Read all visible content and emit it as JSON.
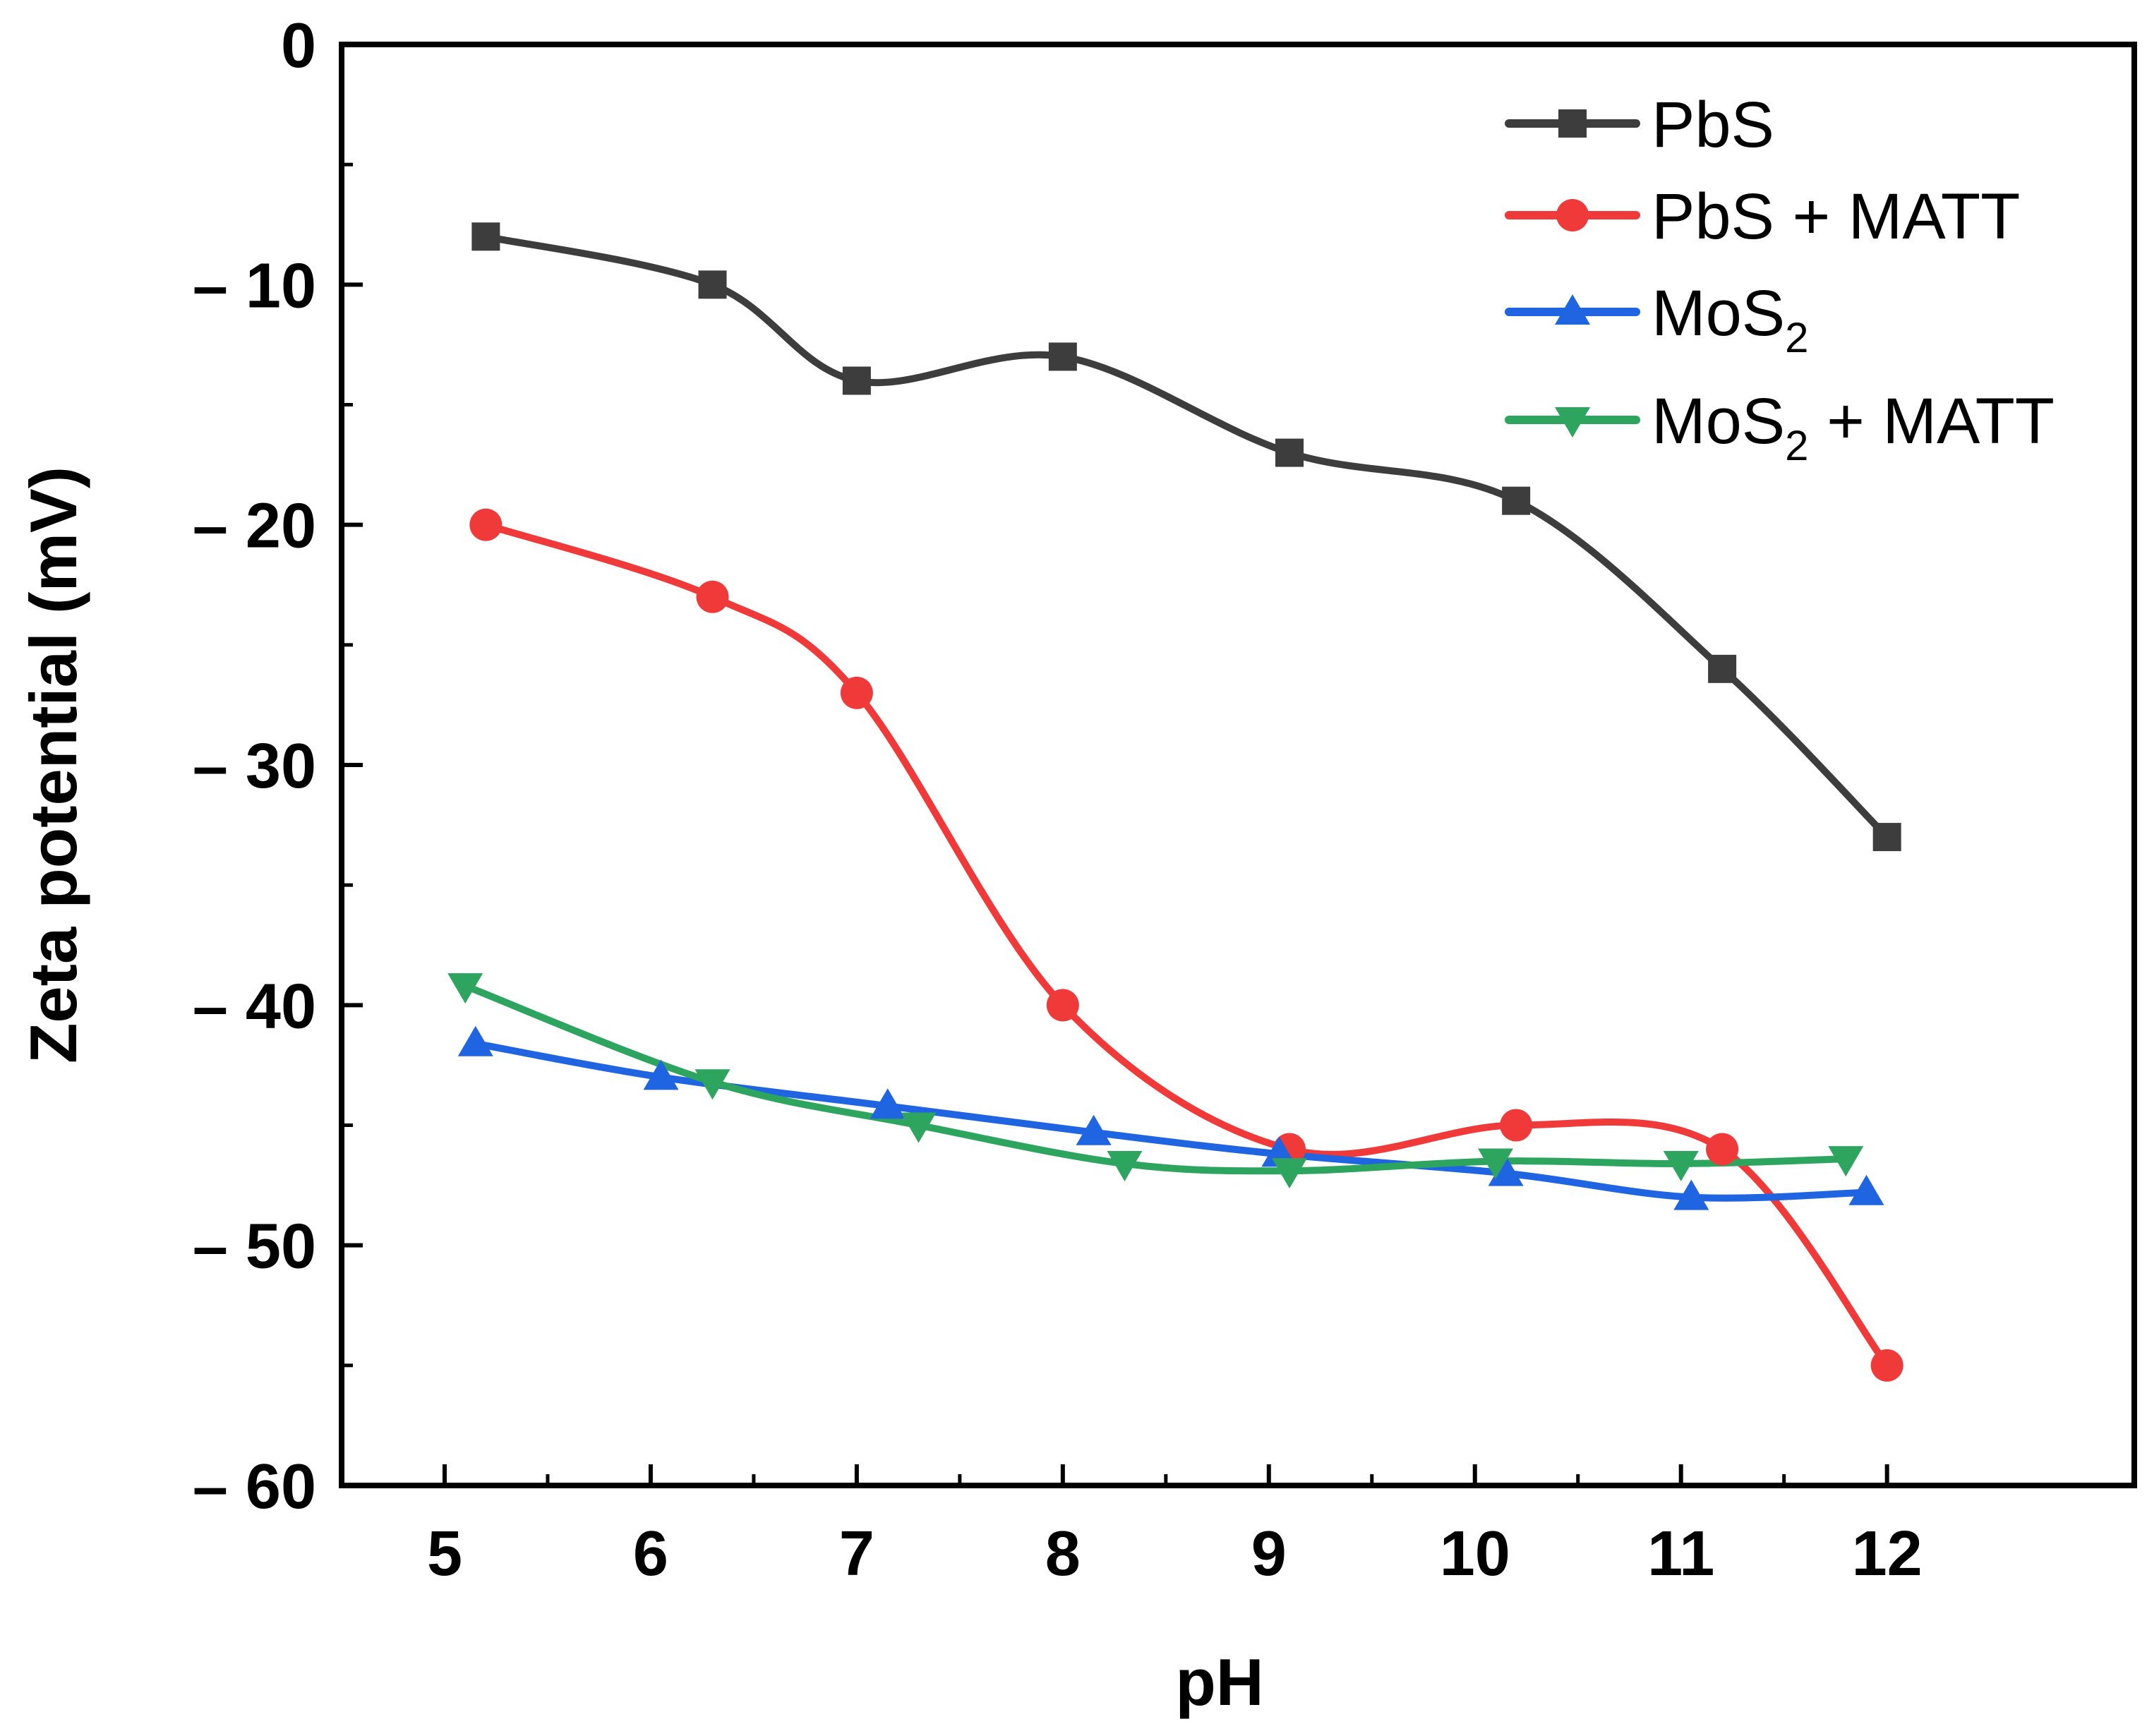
{
  "chart_data": {
    "type": "line",
    "xlabel": "pH",
    "ylabel": "Zeta potential (mV)",
    "xlim": [
      4.5,
      13.2
    ],
    "ylim": [
      -60,
      0
    ],
    "x_ticks": [
      5,
      6,
      7,
      8,
      9,
      10,
      11,
      12
    ],
    "y_ticks": [
      0,
      -10,
      -20,
      -30,
      -40,
      -50,
      -60
    ],
    "y_tick_labels": [
      "0",
      "– 10",
      "– 20",
      "– 30",
      "– 40",
      "– 50",
      "– 60"
    ],
    "grid": false,
    "legend_position": "top-right",
    "series": [
      {
        "name": "PbS",
        "color": "#3d3d3d",
        "marker": "square",
        "points": [
          [
            5.2,
            -8
          ],
          [
            6.3,
            -10
          ],
          [
            7.0,
            -14
          ],
          [
            8.0,
            -13
          ],
          [
            9.1,
            -17
          ],
          [
            10.2,
            -19
          ],
          [
            11.2,
            -26
          ],
          [
            12.0,
            -33
          ]
        ]
      },
      {
        "name": "PbS + MATT",
        "color": "#f03a3a",
        "marker": "circle",
        "points": [
          [
            5.2,
            -20
          ],
          [
            6.3,
            -23
          ],
          [
            7.0,
            -27
          ],
          [
            8.0,
            -40
          ],
          [
            9.1,
            -46
          ],
          [
            10.2,
            -45
          ],
          [
            11.2,
            -46
          ],
          [
            12.0,
            -55
          ]
        ]
      },
      {
        "name": "MoS2",
        "legend_base": "MoS",
        "legend_sub": "2",
        "legend_suffix": "",
        "color": "#1f64e0",
        "marker": "triangle-up",
        "points": [
          [
            5.15,
            -41.6
          ],
          [
            6.05,
            -43
          ],
          [
            7.15,
            -44.2
          ],
          [
            8.15,
            -45.3
          ],
          [
            9.05,
            -46.2
          ],
          [
            10.15,
            -47
          ],
          [
            11.05,
            -48
          ],
          [
            11.9,
            -47.8
          ]
        ]
      },
      {
        "name": "MoS2 + MATT",
        "legend_base": "MoS",
        "legend_sub": "2",
        "legend_suffix": " + MATT",
        "color": "#2ea55e",
        "marker": "triangle-down",
        "points": [
          [
            5.1,
            -39.2
          ],
          [
            6.3,
            -43.2
          ],
          [
            7.3,
            -45
          ],
          [
            8.3,
            -46.6
          ],
          [
            9.1,
            -46.9
          ],
          [
            10.1,
            -46.5
          ],
          [
            11.0,
            -46.6
          ],
          [
            11.8,
            -46.4
          ]
        ]
      }
    ]
  }
}
